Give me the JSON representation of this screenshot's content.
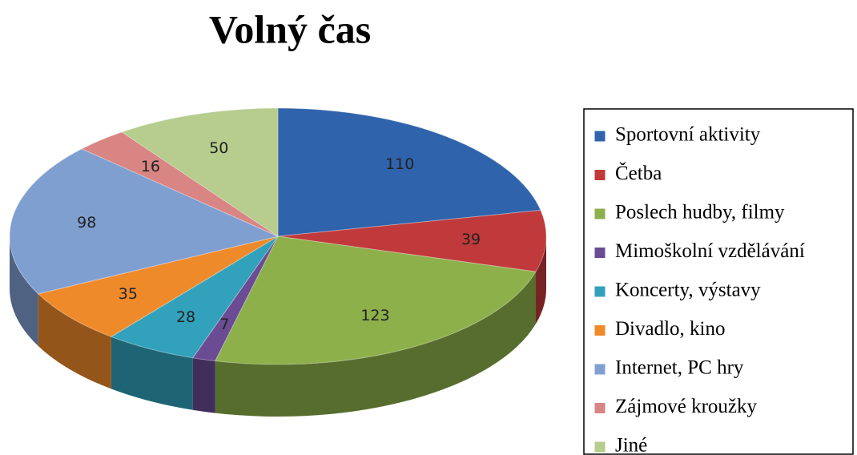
{
  "chart_data": {
    "type": "pie",
    "title": "Volný čas",
    "categories": [
      "Sportovní aktivity",
      "Četba",
      "Poslech hudby, filmy",
      "Mimoškolní vzdělávání",
      "Koncerty, výstavy",
      "Divadlo, kino",
      "Internet, PC hry",
      "Zájmové kroužky",
      "Jiné"
    ],
    "values": [
      110,
      39,
      123,
      7,
      28,
      35,
      98,
      16,
      50
    ],
    "colors": [
      "#2f63ab",
      "#c0393b",
      "#8db04b",
      "#6b4b94",
      "#32a2bc",
      "#ef8a2b",
      "#809fd1",
      "#d88584",
      "#b6cd8d"
    ],
    "legend": "right"
  }
}
